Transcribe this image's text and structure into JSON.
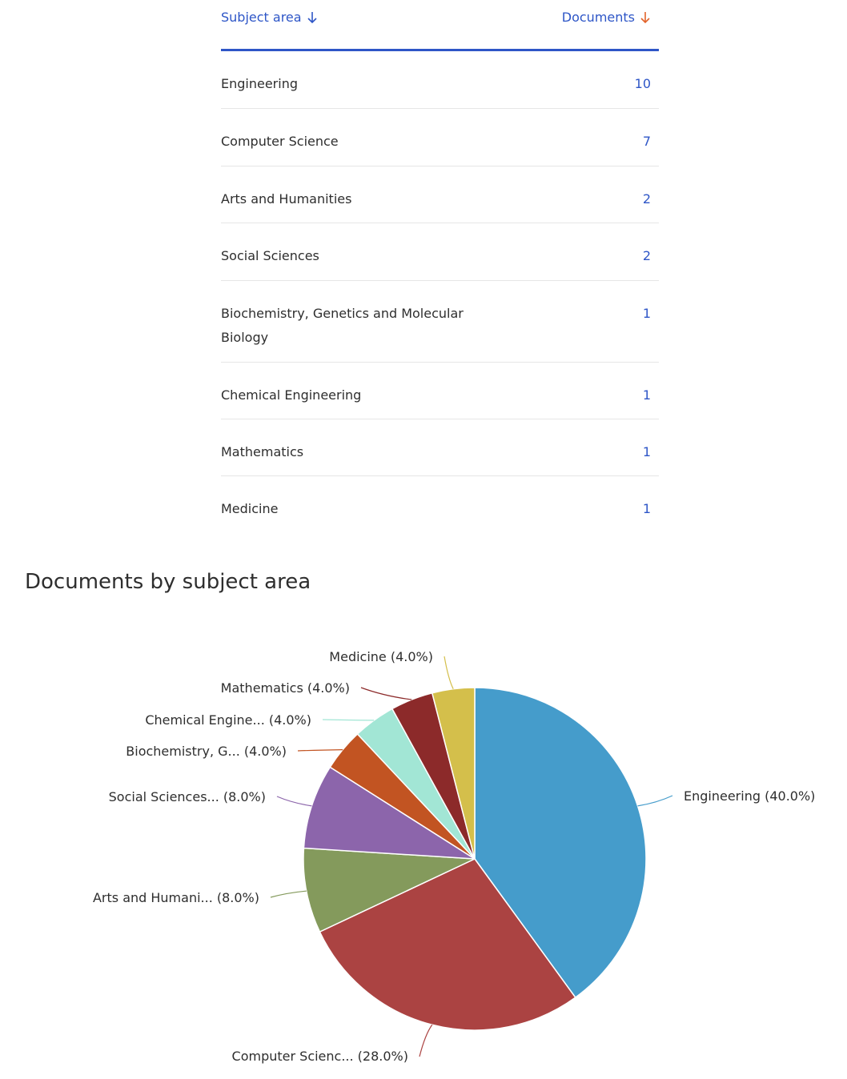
{
  "table": {
    "header": {
      "subject": "Subject area",
      "documents": "Documents"
    },
    "rows": [
      {
        "subject": "Engineering",
        "documents": "10"
      },
      {
        "subject": "Computer Science",
        "documents": "7"
      },
      {
        "subject": "Arts and Humanities",
        "documents": "2"
      },
      {
        "subject": "Social Sciences",
        "documents": "2"
      },
      {
        "subject": "Biochemistry, Genetics and Molecular Biology",
        "documents": "1"
      },
      {
        "subject": "Chemical Engineering",
        "documents": "1"
      },
      {
        "subject": "Mathematics",
        "documents": "1"
      },
      {
        "subject": "Medicine",
        "documents": "1"
      }
    ]
  },
  "chart_data": {
    "type": "pie",
    "title": "Documents by subject area",
    "slices": [
      {
        "label": "Engineering (40.0%)",
        "value": 40.0,
        "color": "#459ccb"
      },
      {
        "label": "Computer Scienc... (28.0%)",
        "value": 28.0,
        "color": "#ab4342"
      },
      {
        "label": "Arts and Humani... (8.0%)",
        "value": 8.0,
        "color": "#849a5c"
      },
      {
        "label": "Social Sciences... (8.0%)",
        "value": 8.0,
        "color": "#8c65ab"
      },
      {
        "label": "Biochemistry, G... (4.0%)",
        "value": 4.0,
        "color": "#c25422"
      },
      {
        "label": "Chemical Engine... (4.0%)",
        "value": 4.0,
        "color": "#a2e6d5"
      },
      {
        "label": "Mathematics (4.0%)",
        "value": 4.0,
        "color": "#8c2a2a"
      },
      {
        "label": "Medicine (4.0%)",
        "value": 4.0,
        "color": "#d4bf4b"
      }
    ]
  }
}
